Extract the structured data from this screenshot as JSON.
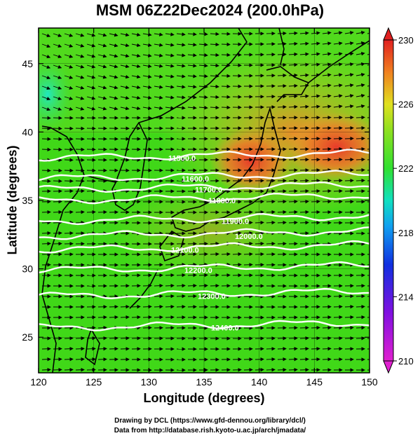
{
  "title": "MSM 06Z22Dec2024 (200.0hPa)",
  "credit_line1": "Drawing by DCL (https://www.gfd-dennou.org/library/dcl/)",
  "credit_line2": "Data from http://database.rish.kyoto-u.ac.jp/arch/jmadata/",
  "colors": {
    "background_high": "#e84020",
    "background_mid": "#30d010",
    "contour": "#ffffff",
    "coastline": "#000000",
    "arrows": "#000000"
  },
  "chart_data": {
    "type": "heatmap",
    "xlabel": "Longitude (degrees)",
    "ylabel": "Latitude  (degrees)",
    "xlim": [
      120,
      150
    ],
    "ylim": [
      22.4,
      47.6
    ],
    "xticks": [
      "120",
      "125",
      "130",
      "135",
      "140",
      "145",
      "150"
    ],
    "yticks": [
      "25",
      "30",
      "35",
      "40",
      "45"
    ],
    "colorbar": {
      "min": 210,
      "max": 230,
      "ticks": [
        "210",
        "214",
        "218",
        "222",
        "226",
        "230"
      ]
    },
    "contours": [
      {
        "label": "11500.0",
        "lat": 38.1
      },
      {
        "label": "11600.0",
        "lat": 36.6
      },
      {
        "label": "11700.0",
        "lat": 35.8
      },
      {
        "label": "11800.0",
        "lat": 35.0
      },
      {
        "label": "11900.0",
        "lat": 33.5
      },
      {
        "label": "12000.0",
        "lat": 32.4
      },
      {
        "label": "12100.0",
        "lat": 31.4
      },
      {
        "label": "12200.0",
        "lat": 29.9
      },
      {
        "label": "12300.0",
        "lat": 28.0
      },
      {
        "label": "12400.0",
        "lat": 25.7
      }
    ]
  }
}
